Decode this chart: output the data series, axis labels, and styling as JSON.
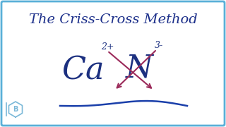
{
  "title": "The Criss-Cross Method",
  "title_color": "#1c2f8a",
  "title_fontsize": 14,
  "bg_color": "#ffffff",
  "border_color": "#5ab0d8",
  "ca_label": "Ca",
  "n_label": "N",
  "ca_charge": "2+",
  "n_charge": "3-",
  "element_color": "#1c3080",
  "charge_color": "#1c3080",
  "arrow_color": "#9b2a5a",
  "wave_color": "#1a3faa",
  "logo_color": "#7ab8d8",
  "logo_b_color": "#7ab8d8"
}
